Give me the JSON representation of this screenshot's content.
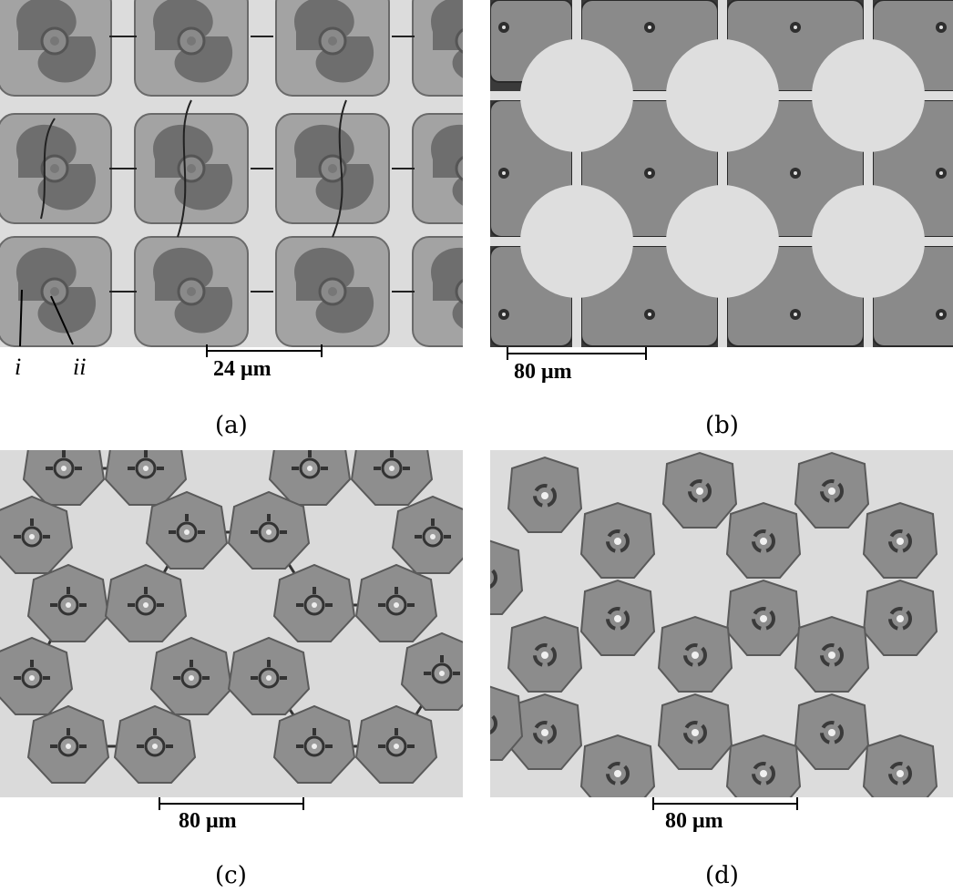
{
  "panels": [
    {
      "caption": "(a)",
      "scale_label": "24 μm",
      "markers": [
        "i",
        "ii"
      ]
    },
    {
      "caption": "(b)",
      "scale_label": "80 μm"
    },
    {
      "caption": "(c)",
      "scale_label": "80 μm"
    },
    {
      "caption": "(d)",
      "scale_label": "80 μm"
    }
  ],
  "colors": {
    "background": "#d9d9d9",
    "tile": "#8c8c8c",
    "dark": "#3c3c3c",
    "outline": "#555555"
  }
}
